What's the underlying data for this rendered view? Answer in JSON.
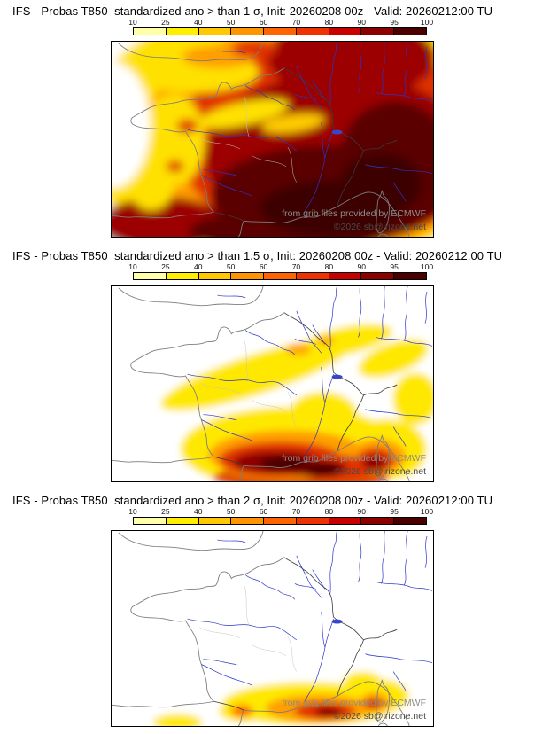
{
  "meta": {
    "model": "IFS",
    "parameter": "Probas T850",
    "description": "standardized ano",
    "init": "20260208 00z",
    "valid": "20260212:00 TU"
  },
  "colorbar": {
    "ticks": [
      "10",
      "25",
      "40",
      "50",
      "60",
      "70",
      "80",
      "90",
      "95",
      "100"
    ],
    "colors": [
      "#ffffaa",
      "#ffee00",
      "#ffc800",
      "#ff9600",
      "#ff6400",
      "#f03200",
      "#c80000",
      "#8c0000",
      "#4b0000"
    ]
  },
  "watermark": {
    "provider": "from grib files provided by ECMWF",
    "copyright": "©2026 sb@irizone.net"
  },
  "panels": [
    {
      "threshold": "1 σ",
      "title": "IFS - Probas T850  standardized ano > than 1 σ, Init: 20260208 00z - Valid: 20260212:00 TU"
    },
    {
      "threshold": "1.5 σ",
      "title": "IFS - Probas T850  standardized ano > than 1.5 σ, Init: 20260208 00z - Valid: 20260212:00 TU"
    },
    {
      "threshold": "2 σ",
      "title": "IFS - Probas T850  standardized ano > than 2 σ, Init: 20260208 00z - Valid: 20260212:00 TU"
    }
  ]
}
